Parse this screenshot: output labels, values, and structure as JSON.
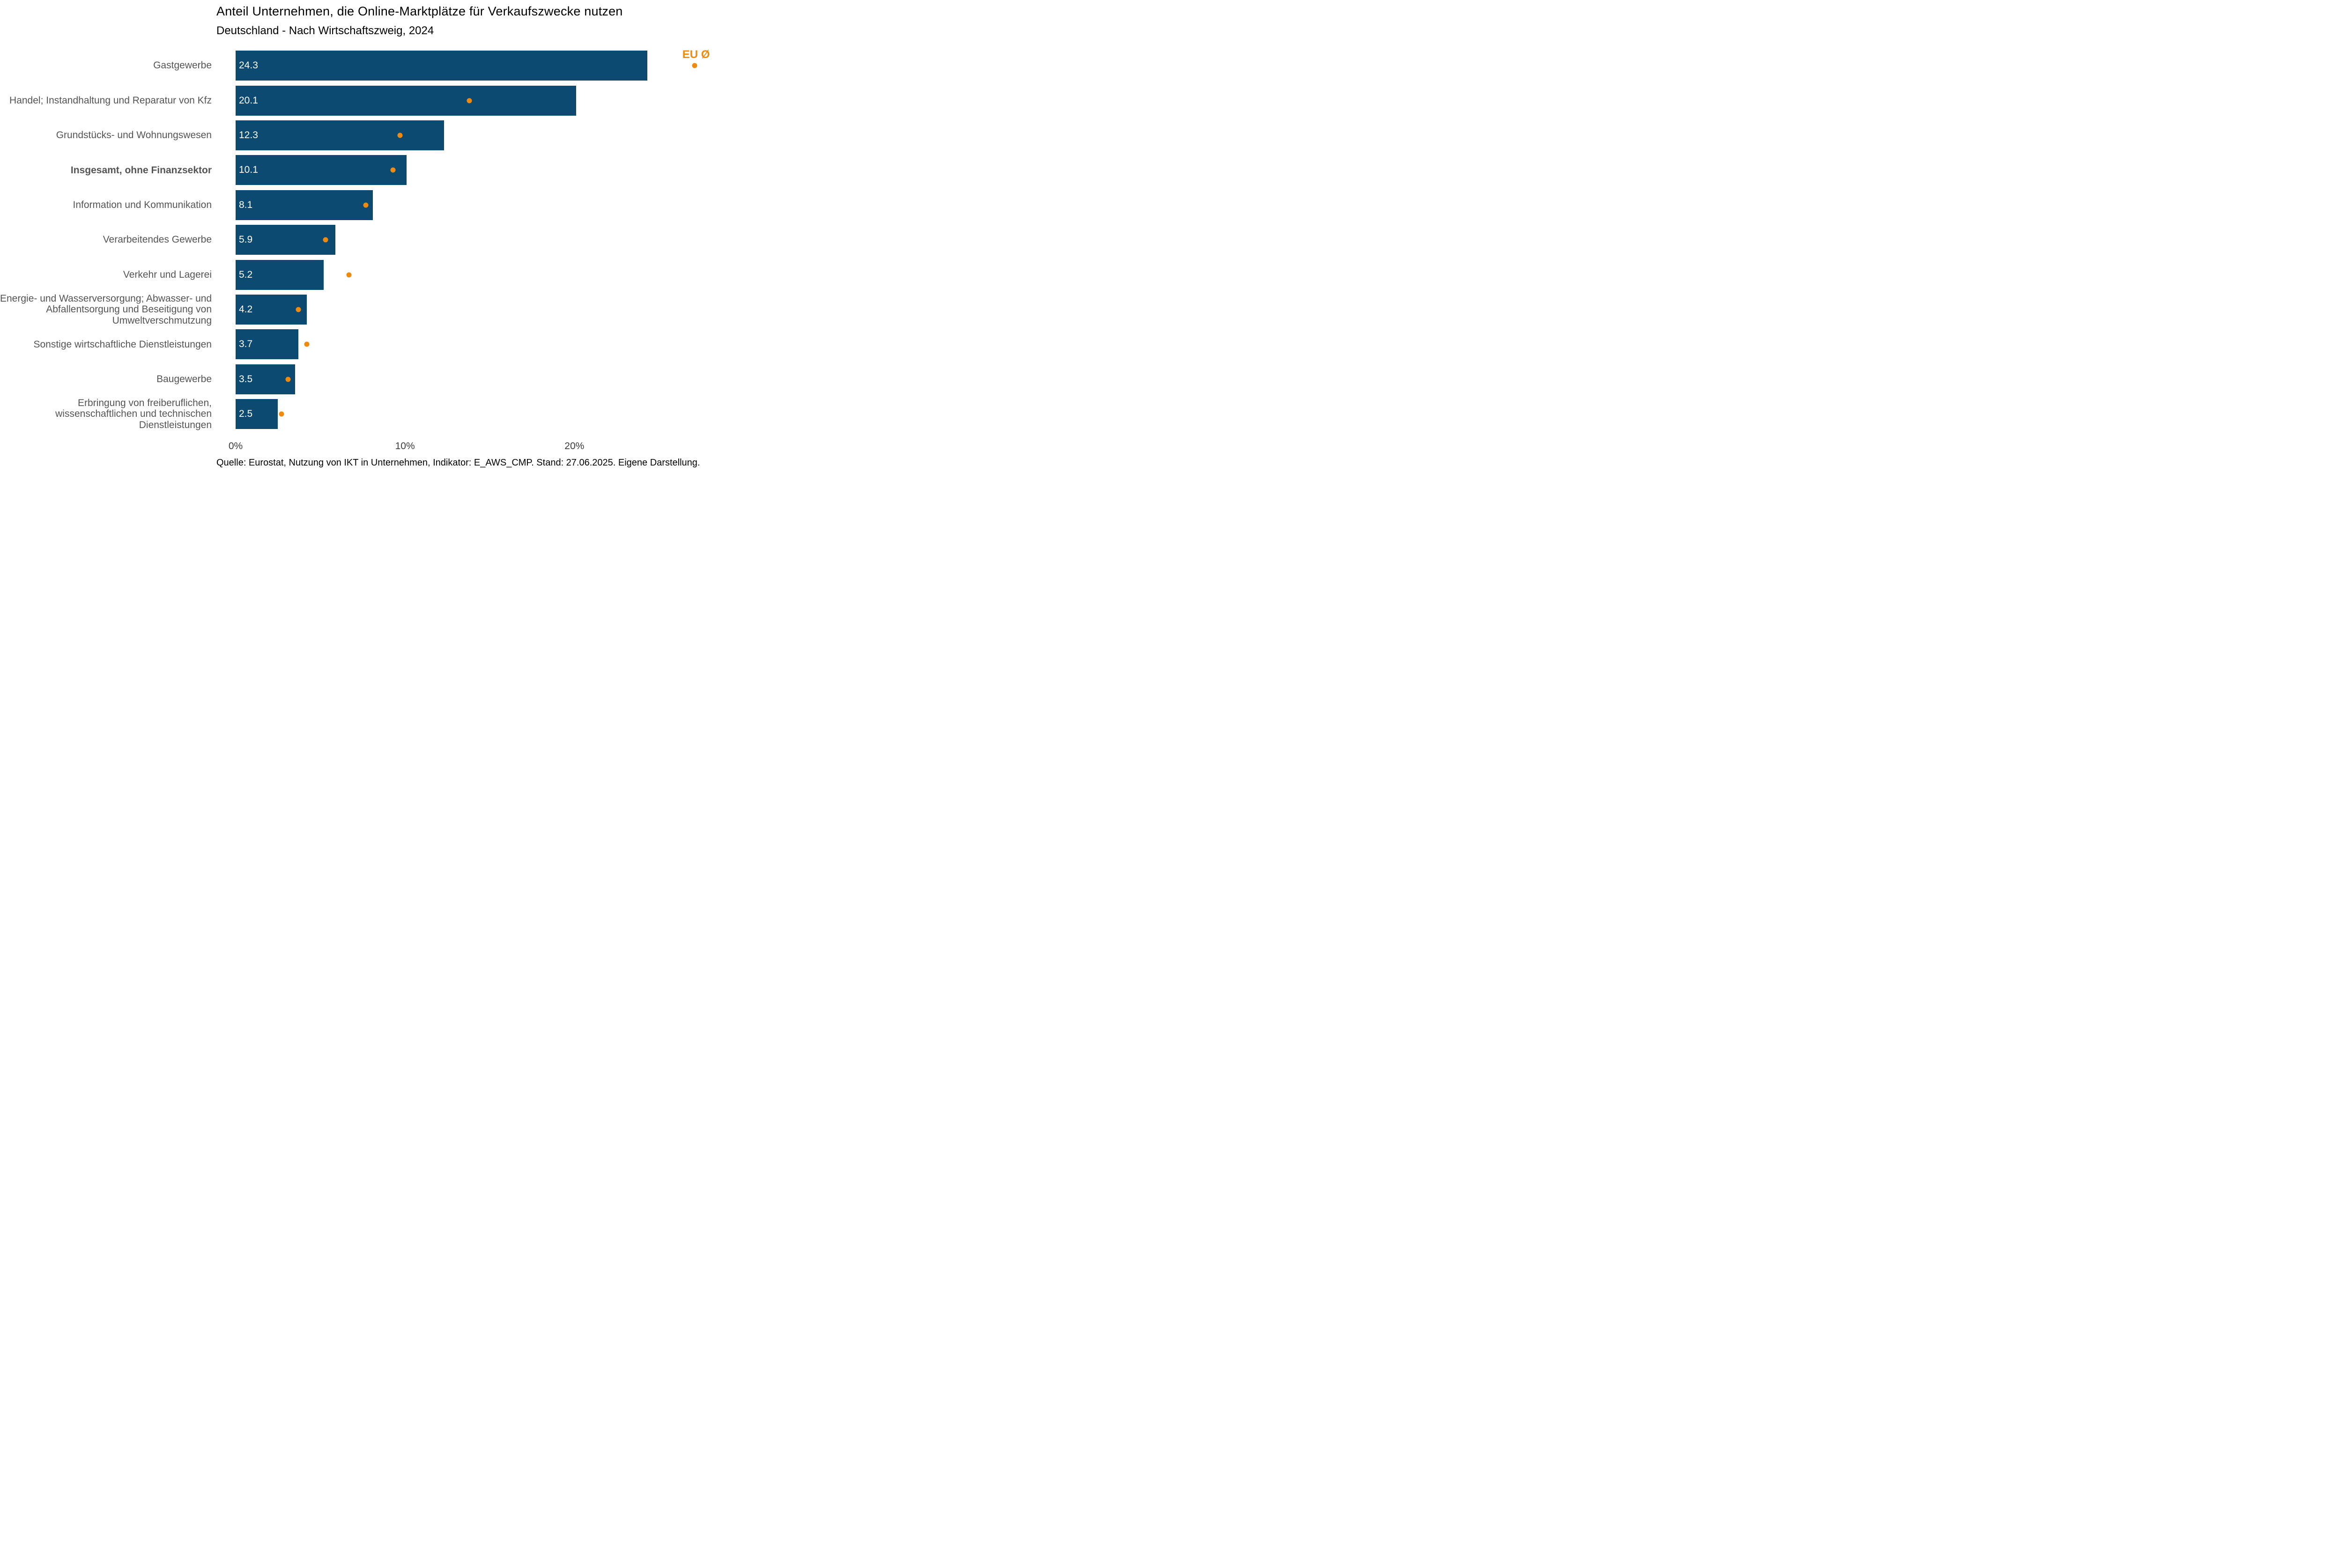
{
  "title": "Anteil Unternehmen, die Online-Marktplätze für Verkaufszwecke nutzen",
  "subtitle": "Deutschland - Nach Wirtschaftszweig, 2024",
  "legend": {
    "label": "EU Ø"
  },
  "source": "Quelle: Eurostat, Nutzung von IKT in Unternehmen, Indikator: E_AWS_CMP. Stand: 27.06.2025. Eigene Darstellung.",
  "colors": {
    "bar": "#0C4A71",
    "dot_orange": "#EE8A0E",
    "category_label": "#545454",
    "tick_label": "#3C3C3C"
  },
  "axis": {
    "max": 28.84,
    "ticks": [
      {
        "label": "0%",
        "value": 0
      },
      {
        "label": "10%",
        "value": 10
      },
      {
        "label": "20%",
        "value": 20
      }
    ]
  },
  "chart_data": {
    "type": "bar",
    "orientation": "horizontal",
    "title": "Anteil Unternehmen, die Online-Marktplätze für Verkaufszwecke nutzen",
    "subtitle": "Deutschland - Nach Wirtschaftszweig, 2024",
    "xlabel": "",
    "ylabel": "",
    "xlim": [
      0,
      28.84
    ],
    "grid": false,
    "categories": [
      "Gastgewerbe",
      "Handel; Instandhaltung und Reparatur von Kfz",
      "Grundstücks- und Wohnungswesen",
      "Insgesamt, ohne Finanzsektor",
      "Information und Kommunikation",
      "Verarbeitendes Gewerbe",
      "Verkehr und Lagerei",
      [
        "Energie- und Wasserversorgung; Abwasser- und",
        "Abfallentsorgung und Beseitigung von",
        "Umweltverschmutzung"
      ],
      "Sonstige wirtschaftliche Dienstleistungen",
      "Baugewerbe",
      [
        "Erbringung von freiberuflichen,",
        "wissenschaftlichen und technischen",
        "Dienstleistungen"
      ]
    ],
    "bold_category_index": 3,
    "series": [
      {
        "name": "Deutschland",
        "type": "bar",
        "values": [
          24.3,
          20.1,
          12.3,
          10.1,
          8.1,
          5.9,
          5.2,
          4.2,
          3.7,
          3.5,
          2.5
        ],
        "value_labels": [
          "24.3",
          "20.1",
          "12.3",
          "10.1",
          "8.1",
          "5.9",
          "5.2",
          "4.2",
          "3.7",
          "3.5",
          "2.5"
        ]
      },
      {
        "name": "EU Ø",
        "type": "scatter",
        "values": [
          27.1,
          13.8,
          9.7,
          9.3,
          7.7,
          5.3,
          6.7,
          3.7,
          4.2,
          3.1,
          2.7
        ]
      }
    ]
  }
}
